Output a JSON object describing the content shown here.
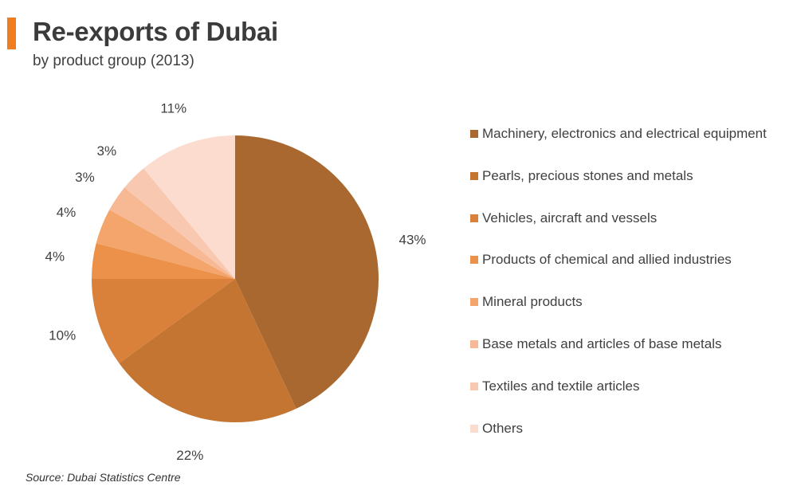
{
  "header": {
    "title": "Re-exports of Dubai",
    "subtitle": "by product group (2013)"
  },
  "chart_data": {
    "type": "pie",
    "unit": "%",
    "slices": [
      {
        "name": "Machinery, electronics and electrical equipment",
        "value": 43,
        "label": "43%",
        "color": "#a8682f"
      },
      {
        "name": "Pearls, precious stones and metals",
        "value": 22,
        "label": "22%",
        "color": "#c47532"
      },
      {
        "name": "Vehicles, aircraft and vessels",
        "value": 10,
        "label": "10%",
        "color": "#d9813a"
      },
      {
        "name": "Products of chemical and allied industries",
        "value": 4,
        "label": "4%",
        "color": "#ec914a"
      },
      {
        "name": "Mineral products",
        "value": 4,
        "label": "4%",
        "color": "#f4a56c"
      },
      {
        "name": "Base metals and articles of base metals",
        "value": 3,
        "label": "3%",
        "color": "#f6b994"
      },
      {
        "name": "Textiles and textile articles",
        "value": 3,
        "label": "3%",
        "color": "#f8c9b0"
      },
      {
        "name": "Others",
        "value": 11,
        "label": "11%",
        "color": "#fcdccf"
      }
    ],
    "legend_position": "right"
  },
  "footer": {
    "source": "Source: Dubai Statistics Centre"
  }
}
